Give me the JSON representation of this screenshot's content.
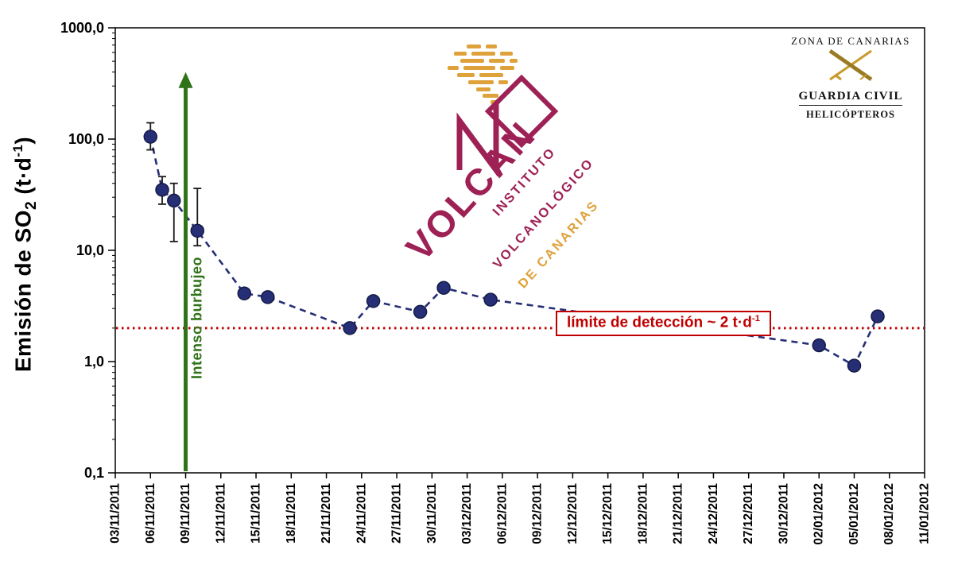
{
  "y_axis_title": {
    "prefix": "Emisión de SO",
    "sub": "2",
    "mid": " (t·d",
    "sup": "-1",
    "suffix": ")"
  },
  "chart_data": {
    "type": "line",
    "title": "",
    "xlabel": "",
    "ylabel": "Emisión de SO2 (t·d-1)",
    "y_scale": "log",
    "y_min": 0.1,
    "y_max": 1000,
    "grid": false,
    "y_ticks": [
      {
        "value": 1000,
        "label": "1000,0"
      },
      {
        "value": 100,
        "label": "100,0"
      },
      {
        "value": 10,
        "label": "10,0"
      },
      {
        "value": 1,
        "label": "1,0"
      },
      {
        "value": 0.1,
        "label": "0,1"
      }
    ],
    "x_start": "03/11/2011",
    "x_end": "11/01/2012",
    "x_tick_labels": [
      "03/11/2011",
      "06/11/2011",
      "09/11/2011",
      "12/11/2011",
      "15/11/2011",
      "18/11/2011",
      "21/11/2011",
      "24/11/2011",
      "27/11/2011",
      "30/11/2011",
      "03/12/2011",
      "06/12/2011",
      "09/12/2011",
      "12/12/2011",
      "15/12/2011",
      "18/12/2011",
      "21/12/2011",
      "24/12/2011",
      "27/12/2011",
      "30/12/2011",
      "02/01/2012",
      "05/01/2012",
      "08/01/2012",
      "11/01/2012"
    ],
    "series": [
      {
        "name": "Emisión de SO2",
        "color": "#262F76",
        "points": [
          {
            "date": "06/11/2011",
            "value": 105,
            "err_lo": 80,
            "err_hi": 140
          },
          {
            "date": "07/11/2011",
            "value": 35,
            "err_lo": 26,
            "err_hi": 46
          },
          {
            "date": "08/11/2011",
            "value": 28,
            "err_lo": 12,
            "err_hi": 40
          },
          {
            "date": "10/11/2011",
            "value": 15,
            "err_lo": 11,
            "err_hi": 36
          },
          {
            "date": "14/11/2011",
            "value": 4.1
          },
          {
            "date": "16/11/2011",
            "value": 3.8
          },
          {
            "date": "23/11/2011",
            "value": 2.0
          },
          {
            "date": "25/11/2011",
            "value": 3.5
          },
          {
            "date": "29/11/2011",
            "value": 2.8
          },
          {
            "date": "01/12/2011",
            "value": 4.6
          },
          {
            "date": "05/12/2011",
            "value": 3.6
          },
          {
            "date": "02/01/2012",
            "value": 1.4
          },
          {
            "date": "05/01/2012",
            "value": 0.92
          },
          {
            "date": "07/01/2012",
            "value": 2.55
          }
        ]
      }
    ],
    "detection_limit": {
      "value": 2,
      "label_prefix": "límite de detección ~ 2 t·d",
      "label_sup": "-1",
      "color": "#C00000"
    },
    "annotation": {
      "label": "Intenso burbujeo",
      "date": "09/11/2011",
      "arrow_top_value": 400,
      "color": "#2F7318"
    }
  },
  "logo_involcan": {
    "wordmark": "VOLCAN",
    "line1": "INSTITUTO",
    "line2": "VOLCANOLÓGICO",
    "line3": "DE CANARIAS",
    "maroon": "#9E2155",
    "gold": "#DFA23B"
  },
  "logo_guardia": {
    "zona": "ZONA DE CANARIAS",
    "name": "GUARDIA CIVIL",
    "sub": "HELICÓPTEROS"
  }
}
